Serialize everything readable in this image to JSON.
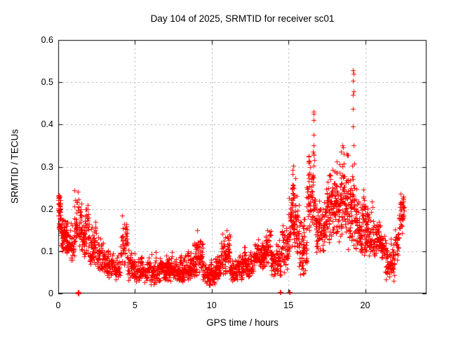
{
  "window": {
    "background": "#ffffff"
  },
  "chart_data": {
    "type": "scatter",
    "title": "Day 104 of 2025, SRMTID for receiver sc01",
    "xlabel": "GPS time / hours",
    "ylabel": "SRMTID / TECUs",
    "xlim": [
      0,
      24
    ],
    "ylim": [
      0,
      0.6
    ],
    "xticks": [
      0,
      5,
      10,
      15,
      20
    ],
    "xtick_labels": [
      "0",
      "5",
      "10",
      "15",
      "20"
    ],
    "yticks": [
      0,
      0.1,
      0.2,
      0.3,
      0.4,
      0.5,
      0.6
    ],
    "ytick_labels": [
      "0",
      "0.1",
      "0.2",
      "0.3",
      "0.4",
      "0.5",
      "0.6"
    ],
    "grid": true,
    "legend": "none",
    "marker": "plus",
    "marker_color": "#ff0000",
    "grid_color": "#a8a8a8",
    "axis_color": "#000000",
    "series": [
      {
        "name": "SRMTID",
        "bands": [
          {
            "x0": 0.0,
            "x1": 0.15,
            "lo": 0.13,
            "hi": 0.245,
            "d": 2.2
          },
          {
            "x0": 0.15,
            "x1": 0.5,
            "lo": 0.1,
            "hi": 0.2,
            "d": 1.6
          },
          {
            "x0": 0.5,
            "x1": 1.05,
            "lo": 0.08,
            "hi": 0.17,
            "d": 1.5
          },
          {
            "x0": 1.05,
            "x1": 1.5,
            "lo": 0.1,
            "hi": 0.245,
            "d": 1.5
          },
          {
            "x0": 1.5,
            "x1": 1.7,
            "lo": 0.09,
            "hi": 0.18,
            "d": 1.4
          },
          {
            "x0": 1.7,
            "x1": 2.0,
            "lo": 0.08,
            "hi": 0.235,
            "d": 1.4
          },
          {
            "x0": 2.0,
            "x1": 2.5,
            "lo": 0.06,
            "hi": 0.17,
            "d": 1.3
          },
          {
            "x0": 2.5,
            "x1": 3.0,
            "lo": 0.05,
            "hi": 0.135,
            "d": 1.25
          },
          {
            "x0": 3.0,
            "x1": 3.6,
            "lo": 0.035,
            "hi": 0.105,
            "d": 1.2
          },
          {
            "x0": 3.6,
            "x1": 4.05,
            "lo": 0.03,
            "hi": 0.09,
            "d": 1.15
          },
          {
            "x0": 4.05,
            "x1": 4.5,
            "lo": 0.05,
            "hi": 0.19,
            "d": 1.2
          },
          {
            "x0": 4.5,
            "x1": 5.0,
            "lo": 0.03,
            "hi": 0.12,
            "d": 1.15
          },
          {
            "x0": 5.0,
            "x1": 6.0,
            "lo": 0.025,
            "hi": 0.09,
            "d": 1.2
          },
          {
            "x0": 6.0,
            "x1": 6.5,
            "lo": 0.02,
            "hi": 0.1,
            "d": 1.2
          },
          {
            "x0": 6.5,
            "x1": 7.0,
            "lo": 0.025,
            "hi": 0.085,
            "d": 1.2
          },
          {
            "x0": 7.0,
            "x1": 7.8,
            "lo": 0.03,
            "hi": 0.1,
            "d": 1.3
          },
          {
            "x0": 7.8,
            "x1": 8.3,
            "lo": 0.02,
            "hi": 0.09,
            "d": 1.3
          },
          {
            "x0": 8.3,
            "x1": 8.85,
            "lo": 0.03,
            "hi": 0.1,
            "d": 1.3
          },
          {
            "x0": 8.85,
            "x1": 9.4,
            "lo": 0.04,
            "hi": 0.15,
            "d": 1.3
          },
          {
            "x0": 9.4,
            "x1": 10.2,
            "lo": 0.02,
            "hi": 0.08,
            "d": 1.3
          },
          {
            "x0": 10.2,
            "x1": 10.6,
            "lo": 0.03,
            "hi": 0.1,
            "d": 1.2
          },
          {
            "x0": 10.6,
            "x1": 11.2,
            "lo": 0.04,
            "hi": 0.15,
            "d": 1.3
          },
          {
            "x0": 11.2,
            "x1": 12.0,
            "lo": 0.03,
            "hi": 0.09,
            "d": 1.3
          },
          {
            "x0": 12.0,
            "x1": 12.7,
            "lo": 0.04,
            "hi": 0.11,
            "d": 1.2
          },
          {
            "x0": 12.7,
            "x1": 13.5,
            "lo": 0.06,
            "hi": 0.13,
            "d": 1.2
          },
          {
            "x0": 13.5,
            "x1": 13.85,
            "lo": 0.07,
            "hi": 0.17,
            "d": 1.2
          },
          {
            "x0": 13.85,
            "x1": 14.5,
            "lo": 0.04,
            "hi": 0.13,
            "d": 1.2
          },
          {
            "x0": 14.5,
            "x1": 15.0,
            "lo": 0.05,
            "hi": 0.17,
            "d": 1.3
          },
          {
            "x0": 15.0,
            "x1": 15.6,
            "lo": 0.1,
            "hi": 0.3,
            "d": 1.5
          },
          {
            "x0": 15.6,
            "x1": 16.2,
            "lo": 0.04,
            "hi": 0.21,
            "d": 1.4
          },
          {
            "x0": 16.2,
            "x1": 16.8,
            "lo": 0.14,
            "hi": 0.33,
            "d": 1.6
          },
          {
            "x0": 16.8,
            "x1": 17.4,
            "lo": 0.09,
            "hi": 0.22,
            "d": 1.5
          },
          {
            "x0": 17.4,
            "x1": 18.0,
            "lo": 0.12,
            "hi": 0.3,
            "d": 1.5
          },
          {
            "x0": 18.0,
            "x1": 18.9,
            "lo": 0.12,
            "hi": 0.33,
            "d": 1.6
          },
          {
            "x0": 18.9,
            "x1": 19.5,
            "lo": 0.1,
            "hi": 0.31,
            "d": 1.6
          },
          {
            "x0": 19.5,
            "x1": 20.0,
            "lo": 0.09,
            "hi": 0.26,
            "d": 1.5
          },
          {
            "x0": 20.0,
            "x1": 20.6,
            "lo": 0.09,
            "hi": 0.22,
            "d": 1.4
          },
          {
            "x0": 20.6,
            "x1": 21.3,
            "lo": 0.08,
            "hi": 0.17,
            "d": 1.4
          },
          {
            "x0": 21.3,
            "x1": 21.9,
            "lo": 0.025,
            "hi": 0.13,
            "d": 1.3
          },
          {
            "x0": 21.9,
            "x1": 22.2,
            "lo": 0.08,
            "hi": 0.17,
            "d": 1.3
          },
          {
            "x0": 22.2,
            "x1": 22.55,
            "lo": 0.14,
            "hi": 0.25,
            "d": 1.5
          }
        ],
        "outlier_points": [
          [
            15.27,
            0.292
          ],
          [
            15.32,
            0.302
          ],
          [
            16.6,
            0.335
          ],
          [
            16.62,
            0.375
          ],
          [
            16.62,
            0.425
          ],
          [
            16.64,
            0.43
          ],
          [
            16.64,
            0.41
          ],
          [
            16.66,
            0.35
          ],
          [
            16.67,
            0.315
          ],
          [
            18.44,
            0.335
          ],
          [
            18.5,
            0.35
          ],
          [
            18.56,
            0.345
          ],
          [
            19.18,
            0.395
          ],
          [
            19.19,
            0.47
          ],
          [
            19.2,
            0.528
          ],
          [
            19.21,
            0.503
          ],
          [
            19.22,
            0.437
          ],
          [
            19.23,
            0.52
          ],
          [
            19.24,
            0.478
          ],
          [
            19.25,
            0.35
          ]
        ],
        "near_zero_points": [
          [
            1.28,
            0.0
          ],
          [
            1.3,
            0.0
          ],
          [
            1.32,
            0.0
          ],
          [
            1.28,
            0.002
          ],
          [
            1.3,
            0.002
          ],
          [
            1.32,
            0.002
          ],
          [
            1.29,
            0.004
          ],
          [
            1.31,
            0.004
          ],
          [
            14.43,
            0.004
          ],
          [
            14.48,
            0.004
          ],
          [
            15.02,
            0.004
          ],
          [
            15.07,
            0.004
          ]
        ]
      }
    ],
    "scatter_generation": {
      "seed": 104,
      "base_points_per_hour": 90,
      "epoch_step_hours": 0.0333
    }
  }
}
